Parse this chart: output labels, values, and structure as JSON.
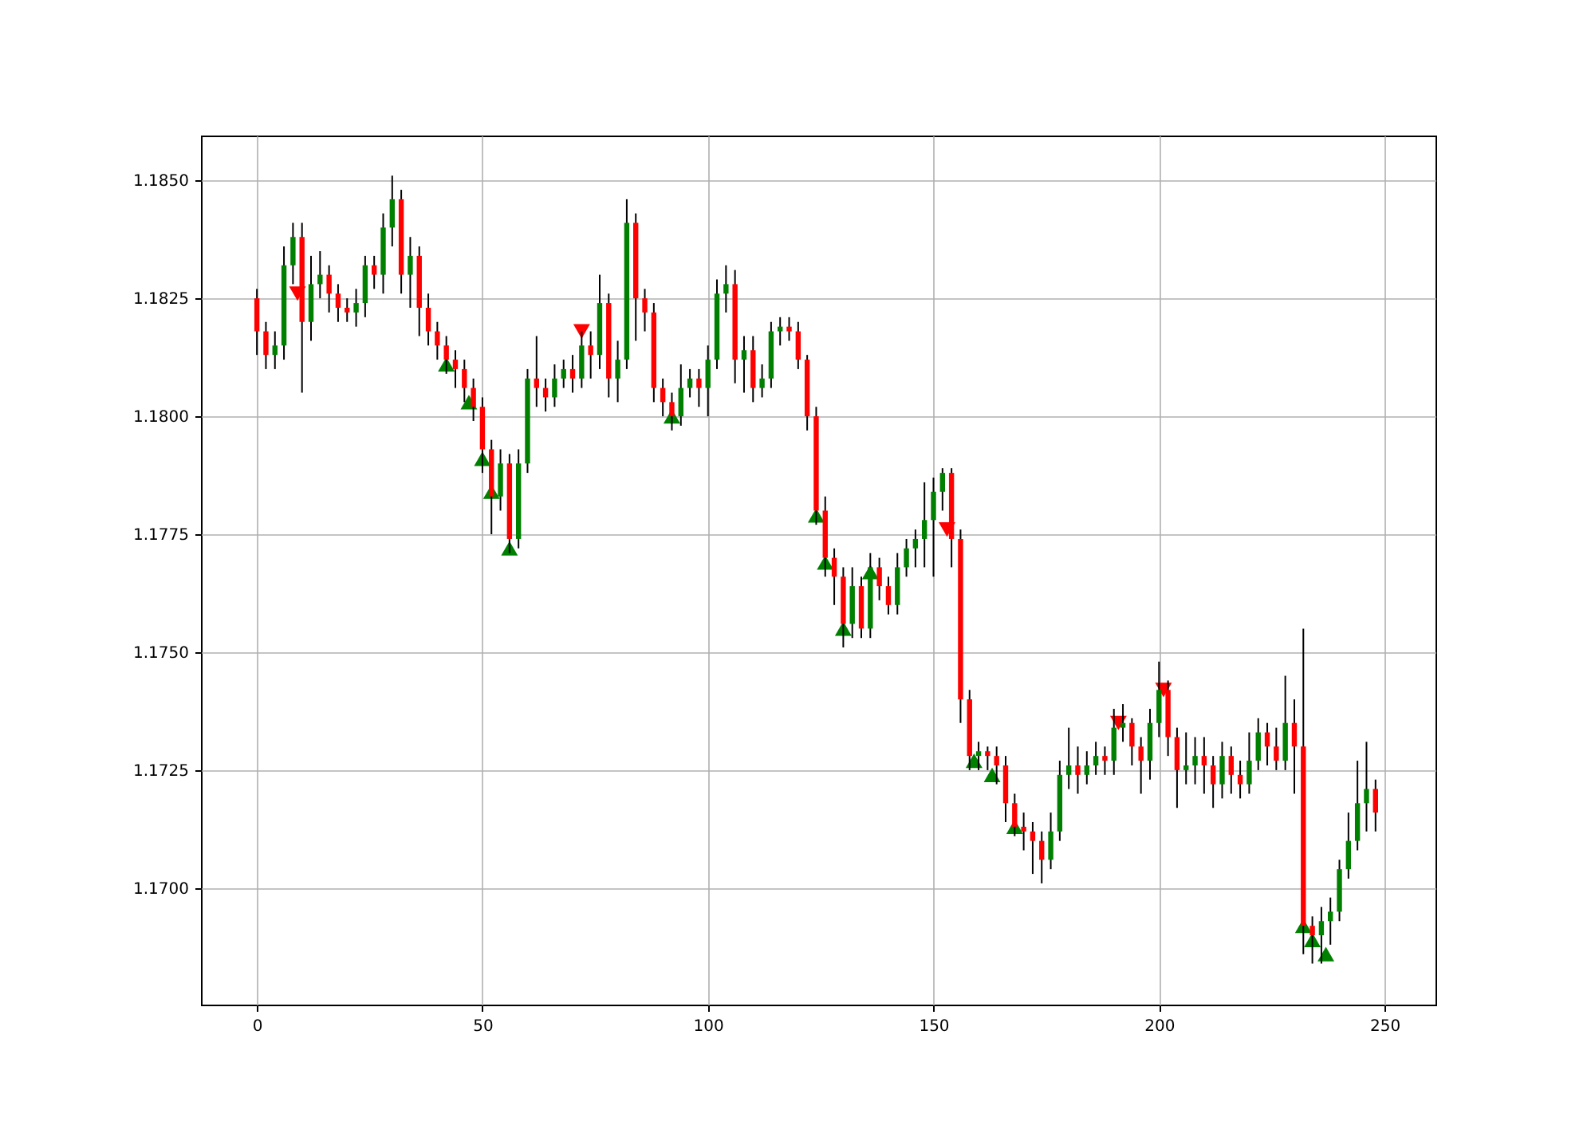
{
  "chart_data": {
    "type": "candlestick",
    "grid": true,
    "xlim": [
      -12.4,
      261.3
    ],
    "xticks": [
      0,
      50,
      100,
      150,
      200,
      250
    ],
    "ylim": [
      1.16753,
      1.18595
    ],
    "yticks": [
      {
        "value": 1.17,
        "label": "1.1700"
      },
      {
        "value": 1.1725,
        "label": "1.1725"
      },
      {
        "value": 1.175,
        "label": "1.1750"
      },
      {
        "value": 1.1775,
        "label": "1.1775"
      },
      {
        "value": 1.18,
        "label": "1.1800"
      },
      {
        "value": 1.1825,
        "label": "1.1825"
      },
      {
        "value": 1.185,
        "label": "1.1850"
      }
    ],
    "series": [
      {
        "type": "scatter",
        "marker": "triangle",
        "color": "#008000",
        "x": [
          42,
          47,
          50,
          52,
          56,
          92,
          124,
          126,
          130,
          136,
          159,
          163,
          168,
          232,
          234,
          237
        ],
        "values": [
          1.1811,
          1.1803,
          1.1791,
          1.1784,
          1.1772,
          1.18,
          1.1779,
          1.1769,
          1.1755,
          1.1767,
          1.1727,
          1.1724,
          1.1713,
          1.1692,
          1.1689,
          1.1686
        ]
      },
      {
        "type": "scatter",
        "marker": "triangle-down",
        "color": "#ff0000",
        "x": [
          9,
          72,
          153,
          191,
          201
        ],
        "values": [
          1.1826,
          1.1818,
          1.1776,
          1.1735,
          1.1742
        ]
      },
      {
        "x": [
          0,
          2,
          4,
          6,
          8,
          10,
          12,
          14,
          16,
          18,
          20,
          22,
          24,
          26,
          28,
          30,
          32,
          34,
          36,
          38,
          40,
          42,
          44,
          46,
          48,
          50,
          52,
          54,
          56,
          58,
          60,
          62,
          64,
          66,
          68,
          70,
          72,
          74,
          76,
          78,
          80,
          82,
          84,
          86,
          88,
          90,
          92,
          94,
          96,
          98,
          100,
          102,
          104,
          106,
          108,
          110,
          112,
          114,
          116,
          118,
          120,
          122,
          124,
          126,
          128,
          130,
          132,
          134,
          136,
          138,
          140,
          142,
          144,
          146,
          148,
          150,
          152,
          154,
          156,
          158,
          160,
          162,
          164,
          166,
          168,
          170,
          172,
          174,
          176,
          178,
          180,
          182,
          184,
          186,
          188,
          190,
          192,
          194,
          196,
          198,
          200,
          202,
          204,
          206,
          208,
          210,
          212,
          214,
          216,
          218,
          220,
          222,
          224,
          226,
          228,
          230,
          232,
          234,
          236,
          238,
          240,
          242,
          244,
          246,
          248
        ],
        "ohlc": [
          [
            1.1825,
            1.1827,
            1.1813,
            1.1818
          ],
          [
            1.1818,
            1.182,
            1.181,
            1.1813
          ],
          [
            1.1813,
            1.1818,
            1.181,
            1.1815
          ],
          [
            1.1815,
            1.1836,
            1.1812,
            1.1832
          ],
          [
            1.1832,
            1.1841,
            1.1828,
            1.1838
          ],
          [
            1.1838,
            1.1841,
            1.1805,
            1.182
          ],
          [
            1.182,
            1.1834,
            1.1816,
            1.1828
          ],
          [
            1.1828,
            1.1835,
            1.1825,
            1.183
          ],
          [
            1.183,
            1.1832,
            1.1822,
            1.1826
          ],
          [
            1.1826,
            1.1828,
            1.182,
            1.1823
          ],
          [
            1.1823,
            1.1825,
            1.182,
            1.1822
          ],
          [
            1.1822,
            1.1827,
            1.1819,
            1.1824
          ],
          [
            1.1824,
            1.1834,
            1.1821,
            1.1832
          ],
          [
            1.1832,
            1.1834,
            1.1827,
            1.183
          ],
          [
            1.183,
            1.1843,
            1.1826,
            1.184
          ],
          [
            1.184,
            1.1851,
            1.1836,
            1.1846
          ],
          [
            1.1846,
            1.1848,
            1.1826,
            1.183
          ],
          [
            1.183,
            1.1838,
            1.1823,
            1.1834
          ],
          [
            1.1834,
            1.1836,
            1.1817,
            1.1823
          ],
          [
            1.1823,
            1.1826,
            1.1815,
            1.1818
          ],
          [
            1.1818,
            1.182,
            1.1812,
            1.1815
          ],
          [
            1.1815,
            1.1817,
            1.1809,
            1.1812
          ],
          [
            1.1812,
            1.1814,
            1.1806,
            1.181
          ],
          [
            1.181,
            1.1812,
            1.1803,
            1.1806
          ],
          [
            1.1806,
            1.1808,
            1.1799,
            1.1802
          ],
          [
            1.1802,
            1.1804,
            1.1788,
            1.1793
          ],
          [
            1.1793,
            1.1795,
            1.1775,
            1.1783
          ],
          [
            1.1783,
            1.1793,
            1.178,
            1.179
          ],
          [
            1.179,
            1.1792,
            1.1771,
            1.1774
          ],
          [
            1.1774,
            1.1793,
            1.1772,
            1.179
          ],
          [
            1.179,
            1.181,
            1.1788,
            1.1808
          ],
          [
            1.1808,
            1.1817,
            1.1802,
            1.1806
          ],
          [
            1.1806,
            1.1808,
            1.1801,
            1.1804
          ],
          [
            1.1804,
            1.1811,
            1.1802,
            1.1808
          ],
          [
            1.1808,
            1.1812,
            1.1806,
            1.181
          ],
          [
            1.181,
            1.1813,
            1.1805,
            1.1808
          ],
          [
            1.1808,
            1.1818,
            1.1806,
            1.1815
          ],
          [
            1.1815,
            1.1818,
            1.1808,
            1.1813
          ],
          [
            1.1813,
            1.183,
            1.181,
            1.1824
          ],
          [
            1.1824,
            1.1826,
            1.1804,
            1.1808
          ],
          [
            1.1808,
            1.1816,
            1.1803,
            1.1812
          ],
          [
            1.1812,
            1.1846,
            1.181,
            1.1841
          ],
          [
            1.1841,
            1.1843,
            1.1816,
            1.1825
          ],
          [
            1.1825,
            1.1827,
            1.1818,
            1.1822
          ],
          [
            1.1822,
            1.1824,
            1.1803,
            1.1806
          ],
          [
            1.1806,
            1.1808,
            1.18,
            1.1803
          ],
          [
            1.1803,
            1.1805,
            1.1797,
            1.18
          ],
          [
            1.18,
            1.1811,
            1.1798,
            1.1806
          ],
          [
            1.1806,
            1.181,
            1.1804,
            1.1808
          ],
          [
            1.1808,
            1.181,
            1.1802,
            1.1806
          ],
          [
            1.1806,
            1.1815,
            1.18,
            1.1812
          ],
          [
            1.1812,
            1.1829,
            1.181,
            1.1826
          ],
          [
            1.1826,
            1.1832,
            1.1822,
            1.1828
          ],
          [
            1.1828,
            1.1831,
            1.1807,
            1.1812
          ],
          [
            1.1812,
            1.1817,
            1.1805,
            1.1814
          ],
          [
            1.1814,
            1.1817,
            1.1803,
            1.1806
          ],
          [
            1.1806,
            1.1811,
            1.1804,
            1.1808
          ],
          [
            1.1808,
            1.182,
            1.1806,
            1.1818
          ],
          [
            1.1818,
            1.1821,
            1.1815,
            1.1819
          ],
          [
            1.1819,
            1.1821,
            1.1816,
            1.1818
          ],
          [
            1.1818,
            1.182,
            1.181,
            1.1812
          ],
          [
            1.1812,
            1.1813,
            1.1797,
            1.18
          ],
          [
            1.18,
            1.1802,
            1.1777,
            1.178
          ],
          [
            1.178,
            1.1783,
            1.1766,
            1.177
          ],
          [
            1.177,
            1.1772,
            1.176,
            1.1766
          ],
          [
            1.1766,
            1.1768,
            1.1751,
            1.1756
          ],
          [
            1.1756,
            1.1768,
            1.1753,
            1.1764
          ],
          [
            1.1764,
            1.1766,
            1.1753,
            1.1755
          ],
          [
            1.1755,
            1.1771,
            1.1753,
            1.1768
          ],
          [
            1.1768,
            1.177,
            1.1761,
            1.1764
          ],
          [
            1.1764,
            1.1766,
            1.1758,
            1.176
          ],
          [
            1.176,
            1.1771,
            1.1758,
            1.1768
          ],
          [
            1.1768,
            1.1774,
            1.1766,
            1.1772
          ],
          [
            1.1772,
            1.1776,
            1.1768,
            1.1774
          ],
          [
            1.1774,
            1.1786,
            1.1768,
            1.1778
          ],
          [
            1.1778,
            1.1787,
            1.1766,
            1.1784
          ],
          [
            1.1784,
            1.1789,
            1.178,
            1.1788
          ],
          [
            1.1788,
            1.1789,
            1.1768,
            1.1774
          ],
          [
            1.1774,
            1.1776,
            1.1735,
            1.174
          ],
          [
            1.174,
            1.1742,
            1.1725,
            1.1728
          ],
          [
            1.1728,
            1.1731,
            1.1725,
            1.1729
          ],
          [
            1.1729,
            1.173,
            1.1725,
            1.1728
          ],
          [
            1.1728,
            1.173,
            1.1722,
            1.1726
          ],
          [
            1.1726,
            1.1728,
            1.1714,
            1.1718
          ],
          [
            1.1718,
            1.172,
            1.1711,
            1.1713
          ],
          [
            1.1713,
            1.1716,
            1.1708,
            1.1712
          ],
          [
            1.1712,
            1.1714,
            1.1703,
            1.171
          ],
          [
            1.171,
            1.1712,
            1.1701,
            1.1706
          ],
          [
            1.1706,
            1.1716,
            1.1704,
            1.1712
          ],
          [
            1.1712,
            1.1727,
            1.171,
            1.1724
          ],
          [
            1.1724,
            1.1734,
            1.1721,
            1.1726
          ],
          [
            1.1726,
            1.173,
            1.172,
            1.1724
          ],
          [
            1.1724,
            1.1729,
            1.1722,
            1.1726
          ],
          [
            1.1726,
            1.1731,
            1.1724,
            1.1728
          ],
          [
            1.1728,
            1.173,
            1.1724,
            1.1727
          ],
          [
            1.1727,
            1.1738,
            1.1724,
            1.1734
          ],
          [
            1.1734,
            1.1739,
            1.1731,
            1.1735
          ],
          [
            1.1735,
            1.1736,
            1.1726,
            1.173
          ],
          [
            1.173,
            1.1732,
            1.172,
            1.1727
          ],
          [
            1.1727,
            1.1738,
            1.1723,
            1.1735
          ],
          [
            1.1735,
            1.1748,
            1.1732,
            1.1742
          ],
          [
            1.1742,
            1.1744,
            1.1728,
            1.1732
          ],
          [
            1.1732,
            1.1734,
            1.1717,
            1.1725
          ],
          [
            1.1725,
            1.1733,
            1.1722,
            1.1726
          ],
          [
            1.1726,
            1.1732,
            1.1722,
            1.1728
          ],
          [
            1.1728,
            1.1732,
            1.172,
            1.1726
          ],
          [
            1.1726,
            1.1728,
            1.1717,
            1.1722
          ],
          [
            1.1722,
            1.1731,
            1.1719,
            1.1728
          ],
          [
            1.1728,
            1.173,
            1.172,
            1.1724
          ],
          [
            1.1724,
            1.1727,
            1.1719,
            1.1722
          ],
          [
            1.1722,
            1.1733,
            1.172,
            1.1727
          ],
          [
            1.1727,
            1.1736,
            1.1725,
            1.1733
          ],
          [
            1.1733,
            1.1735,
            1.1726,
            1.173
          ],
          [
            1.173,
            1.1734,
            1.1725,
            1.1727
          ],
          [
            1.1727,
            1.1745,
            1.1725,
            1.1735
          ],
          [
            1.1735,
            1.174,
            1.172,
            1.173
          ],
          [
            1.173,
            1.1755,
            1.1686,
            1.1692
          ],
          [
            1.1692,
            1.1694,
            1.1684,
            1.169
          ],
          [
            1.169,
            1.1696,
            1.1684,
            1.1693
          ],
          [
            1.1693,
            1.1698,
            1.1688,
            1.1695
          ],
          [
            1.1695,
            1.1706,
            1.1693,
            1.1704
          ],
          [
            1.1704,
            1.1716,
            1.1702,
            1.171
          ],
          [
            1.171,
            1.1727,
            1.1708,
            1.1718
          ],
          [
            1.1718,
            1.1731,
            1.1712,
            1.1721
          ],
          [
            1.1721,
            1.1723,
            1.1712,
            1.1716
          ]
        ]
      }
    ]
  }
}
